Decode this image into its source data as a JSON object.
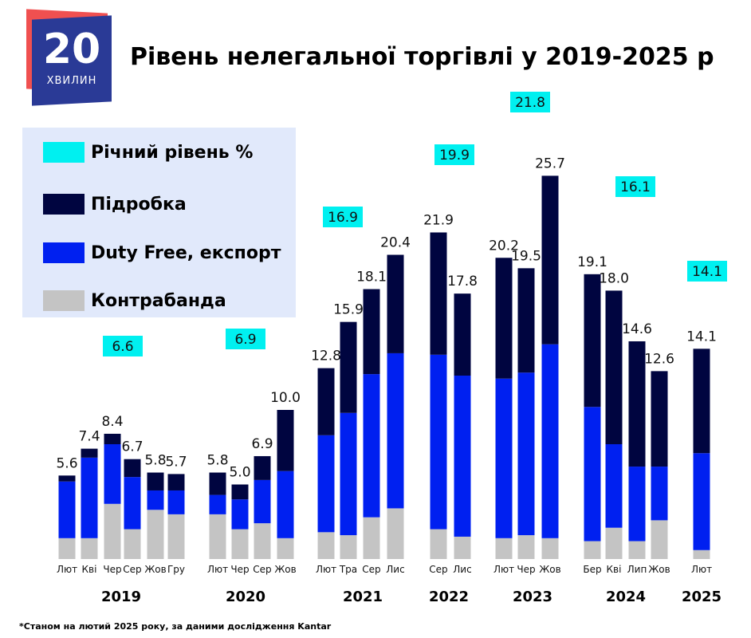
{
  "header": {
    "title": "Рівень нелегальної торгівлі у 2019-2025 р",
    "logo_text": "20",
    "logo_subtext": "ХВИЛИН"
  },
  "legend": [
    {
      "label": "Річний рівень %",
      "color": "#00f0f0"
    },
    {
      "label": "Підробка",
      "color": "#000540"
    },
    {
      "label": "Duty Free, експорт",
      "color": "#0020f0"
    },
    {
      "label": "Контрабанда",
      "color": "#c4c4c4"
    }
  ],
  "footnote": "*Станом на лютий 2025 року, за даними дослідження Kantar",
  "chart_data": {
    "type": "bar",
    "stacked": true,
    "title": "Рівень нелегальної торгівлі у 2019-2025 р",
    "series_names": [
      "Контрабанда",
      "Duty Free, експорт",
      "Підробка"
    ],
    "groups": [
      {
        "year": "2019",
        "annual": "6.6",
        "bars": [
          {
            "month": "Лют",
            "total": "5.6",
            "values": [
              1.4,
              3.8,
              0.4
            ]
          },
          {
            "month": "Кві",
            "total": "7.4",
            "values": [
              1.4,
              5.4,
              0.6
            ]
          },
          {
            "month": "Чер",
            "total": "8.4",
            "values": [
              3.7,
              4.0,
              0.7
            ]
          },
          {
            "month": "Сер",
            "total": "6.7",
            "values": [
              2.0,
              3.5,
              1.2
            ]
          },
          {
            "month": "Жов",
            "total": "5.8",
            "values": [
              3.3,
              1.3,
              1.2
            ]
          },
          {
            "month": "Гру",
            "total": "5.7",
            "values": [
              3.0,
              1.6,
              1.1
            ]
          }
        ]
      },
      {
        "year": "2020",
        "annual": "6.9",
        "bars": [
          {
            "month": "Лют",
            "total": "5.8",
            "values": [
              3.0,
              1.3,
              1.5
            ]
          },
          {
            "month": "Чер",
            "total": "5.0",
            "values": [
              2.0,
              2.0,
              1.0
            ]
          },
          {
            "month": "Сер",
            "total": "6.9",
            "values": [
              2.4,
              2.9,
              1.6
            ]
          },
          {
            "month": "Жов",
            "total": "10.0",
            "values": [
              1.4,
              4.5,
              4.1
            ]
          }
        ]
      },
      {
        "year": "2021",
        "annual": "16.9",
        "bars": [
          {
            "month": "Лют",
            "total": "12.8",
            "values": [
              1.8,
              6.5,
              4.5
            ]
          },
          {
            "month": "Тра",
            "total": "15.9",
            "values": [
              1.6,
              8.2,
              6.1
            ]
          },
          {
            "month": "Сер",
            "total": "18.1",
            "values": [
              2.8,
              9.6,
              5.7
            ]
          },
          {
            "month": "Лис",
            "total": "20.4",
            "values": [
              3.4,
              10.4,
              6.6
            ]
          }
        ]
      },
      {
        "year": "2022",
        "annual": "19.9",
        "bars": [
          {
            "month": "Сер",
            "total": "21.9",
            "values": [
              2.0,
              11.7,
              8.2
            ]
          },
          {
            "month": "Лис",
            "total": "17.8",
            "values": [
              1.5,
              10.8,
              5.5
            ]
          }
        ]
      },
      {
        "year": "2023",
        "annual": "21.8",
        "bars": [
          {
            "month": "Лют",
            "total": "20.2",
            "values": [
              1.4,
              10.7,
              8.1
            ]
          },
          {
            "month": "Чер",
            "total": "19.5",
            "values": [
              1.6,
              10.9,
              7.0
            ]
          },
          {
            "month": "Жов",
            "total": "25.7",
            "values": [
              1.4,
              13.0,
              11.3
            ]
          }
        ]
      },
      {
        "year": "2024",
        "annual": "16.1",
        "bars": [
          {
            "month": "Бер",
            "total": "19.1",
            "values": [
              1.2,
              9.0,
              8.9
            ]
          },
          {
            "month": "Кві",
            "total": "18.0",
            "values": [
              2.1,
              5.6,
              10.3
            ]
          },
          {
            "month": "Лип",
            "total": "14.6",
            "values": [
              1.2,
              5.0,
              8.4
            ]
          },
          {
            "month": "Жов",
            "total": "12.6",
            "values": [
              2.6,
              3.6,
              6.4
            ]
          }
        ]
      },
      {
        "year": "2025",
        "annual": "14.1",
        "bars": [
          {
            "month": "Лют",
            "total": "14.1",
            "values": [
              0.6,
              6.5,
              7.0
            ]
          }
        ]
      }
    ],
    "ylim": [
      0,
      26
    ],
    "grid": false,
    "legend_position": "top-left"
  }
}
